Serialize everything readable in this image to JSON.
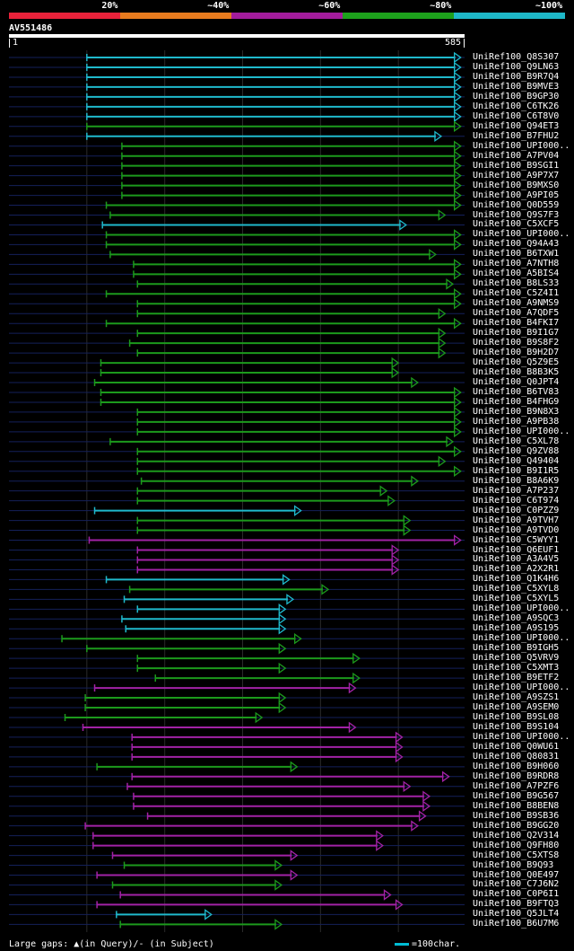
{
  "legend": {
    "ranges": [
      {
        "label": "20%",
        "color": "#e8223a"
      },
      {
        "label": "~40%",
        "color": "#e87b1e"
      },
      {
        "label": "~60%",
        "color": "#a31c9c"
      },
      {
        "label": "~80%",
        "color": "#1da11c"
      },
      {
        "label": "~100%",
        "color": "#1eb8c8"
      }
    ]
  },
  "query": {
    "name": "AV551486",
    "start": "1",
    "end": "585",
    "length": 585
  },
  "colors": {
    "cyan": "#1fb9cc",
    "green": "#1c9a1c",
    "magenta": "#a222a6",
    "faint": "#14205a",
    "divider": "#2a2a2a"
  },
  "hits": [
    {
      "label": "UniRef100_Q8S307",
      "start": 100,
      "end": 580,
      "color": "cyan"
    },
    {
      "label": "UniRef100_Q9LN63",
      "start": 100,
      "end": 580,
      "color": "cyan"
    },
    {
      "label": "UniRef100_B9R7Q4",
      "start": 100,
      "end": 580,
      "color": "cyan"
    },
    {
      "label": "UniRef100_B9MVE3",
      "start": 100,
      "end": 580,
      "color": "cyan"
    },
    {
      "label": "UniRef100_B9GP30",
      "start": 100,
      "end": 580,
      "color": "cyan"
    },
    {
      "label": "UniRef100_C6TK26",
      "start": 100,
      "end": 580,
      "color": "cyan"
    },
    {
      "label": "UniRef100_C6T8V0",
      "start": 100,
      "end": 580,
      "color": "cyan"
    },
    {
      "label": "UniRef100_Q94ET3",
      "start": 100,
      "end": 580,
      "color": "green"
    },
    {
      "label": "UniRef100_B7FHU2",
      "start": 100,
      "end": 555,
      "color": "cyan"
    },
    {
      "label": "UniRef100_UPI000..",
      "start": 145,
      "end": 580,
      "color": "green"
    },
    {
      "label": "UniRef100_A7PV04",
      "start": 145,
      "end": 580,
      "color": "green"
    },
    {
      "label": "UniRef100_B9SGI1",
      "start": 145,
      "end": 580,
      "color": "green"
    },
    {
      "label": "UniRef100_A9P7X7",
      "start": 145,
      "end": 580,
      "color": "green"
    },
    {
      "label": "UniRef100_B9MXS0",
      "start": 145,
      "end": 580,
      "color": "green"
    },
    {
      "label": "UniRef100_A9PI05",
      "start": 145,
      "end": 580,
      "color": "green"
    },
    {
      "label": "UniRef100_Q0D559",
      "start": 125,
      "end": 580,
      "color": "green"
    },
    {
      "label": "UniRef100_Q9S7F3",
      "start": 130,
      "end": 560,
      "color": "green"
    },
    {
      "label": "UniRef100_C5XCF5",
      "start": 120,
      "end": 510,
      "color": "cyan"
    },
    {
      "label": "UniRef100_UPI000..",
      "start": 125,
      "end": 580,
      "color": "green"
    },
    {
      "label": "UniRef100_Q94A43",
      "start": 125,
      "end": 580,
      "color": "green"
    },
    {
      "label": "UniRef100_B6TXW1",
      "start": 130,
      "end": 548,
      "color": "green"
    },
    {
      "label": "UniRef100_A7NTH8",
      "start": 160,
      "end": 580,
      "color": "green"
    },
    {
      "label": "UniRef100_A5BIS4",
      "start": 160,
      "end": 580,
      "color": "green"
    },
    {
      "label": "UniRef100_B8LS33",
      "start": 165,
      "end": 570,
      "color": "green"
    },
    {
      "label": "UniRef100_C5Z4I1",
      "start": 125,
      "end": 580,
      "color": "green"
    },
    {
      "label": "UniRef100_A9NMS9",
      "start": 165,
      "end": 580,
      "color": "green"
    },
    {
      "label": "UniRef100_A7QDF5",
      "start": 165,
      "end": 560,
      "color": "green"
    },
    {
      "label": "UniRef100_B4FKI7",
      "start": 125,
      "end": 580,
      "color": "green"
    },
    {
      "label": "UniRef100_B9I1G7",
      "start": 165,
      "end": 560,
      "color": "green"
    },
    {
      "label": "UniRef100_B9S8F2",
      "start": 155,
      "end": 560,
      "color": "green"
    },
    {
      "label": "UniRef100_B9H2D7",
      "start": 165,
      "end": 560,
      "color": "green"
    },
    {
      "label": "UniRef100_Q5Z9E5",
      "start": 118,
      "end": 500,
      "color": "green"
    },
    {
      "label": "UniRef100_B8B3K5",
      "start": 118,
      "end": 500,
      "color": "green"
    },
    {
      "label": "UniRef100_Q0JPT4",
      "start": 110,
      "end": 525,
      "color": "green"
    },
    {
      "label": "UniRef100_B6TV83",
      "start": 118,
      "end": 580,
      "color": "green"
    },
    {
      "label": "UniRef100_B4FHG9",
      "start": 118,
      "end": 580,
      "color": "green"
    },
    {
      "label": "UniRef100_B9N8X3",
      "start": 165,
      "end": 580,
      "color": "green"
    },
    {
      "label": "UniRef100_A9PB38",
      "start": 165,
      "end": 580,
      "color": "green"
    },
    {
      "label": "UniRef100_UPI000..",
      "start": 165,
      "end": 580,
      "color": "green"
    },
    {
      "label": "UniRef100_C5XL78",
      "start": 130,
      "end": 570,
      "color": "green"
    },
    {
      "label": "UniRef100_Q9ZV88",
      "start": 165,
      "end": 580,
      "color": "green"
    },
    {
      "label": "UniRef100_Q49404",
      "start": 165,
      "end": 560,
      "color": "green"
    },
    {
      "label": "UniRef100_B9I1R5",
      "start": 165,
      "end": 580,
      "color": "green"
    },
    {
      "label": "UniRef100_B8A6K9",
      "start": 170,
      "end": 525,
      "color": "green"
    },
    {
      "label": "UniRef100_A7P237",
      "start": 165,
      "end": 485,
      "color": "green"
    },
    {
      "label": "UniRef100_C6T974",
      "start": 165,
      "end": 495,
      "color": "green"
    },
    {
      "label": "UniRef100_C0PZZ9",
      "start": 110,
      "end": 375,
      "color": "cyan"
    },
    {
      "label": "UniRef100_A9TVH7",
      "start": 165,
      "end": 515,
      "color": "green"
    },
    {
      "label": "UniRef100_A9TVD0",
      "start": 165,
      "end": 515,
      "color": "green"
    },
    {
      "label": "UniRef100_C5WYY1",
      "start": 103,
      "end": 580,
      "color": "magenta"
    },
    {
      "label": "UniRef100_Q6EUF1",
      "start": 165,
      "end": 500,
      "color": "magenta"
    },
    {
      "label": "UniRef100_A3A4V5",
      "start": 165,
      "end": 500,
      "color": "magenta"
    },
    {
      "label": "UniRef100_A2X2R1",
      "start": 165,
      "end": 500,
      "color": "magenta"
    },
    {
      "label": "UniRef100_Q1K4H6",
      "start": 125,
      "end": 360,
      "color": "cyan"
    },
    {
      "label": "UniRef100_C5XYL8",
      "start": 155,
      "end": 410,
      "color": "green"
    },
    {
      "label": "UniRef100_C5XYL5",
      "start": 148,
      "end": 365,
      "color": "cyan"
    },
    {
      "label": "UniRef100_UPI000..",
      "start": 165,
      "end": 355,
      "color": "cyan"
    },
    {
      "label": "UniRef100_A9SQC3",
      "start": 145,
      "end": 355,
      "color": "cyan"
    },
    {
      "label": "UniRef100_A9S195",
      "start": 150,
      "end": 355,
      "color": "cyan"
    },
    {
      "label": "UniRef100_UPI000..",
      "start": 68,
      "end": 375,
      "color": "green"
    },
    {
      "label": "UniRef100_B9IGH5",
      "start": 100,
      "end": 355,
      "color": "green"
    },
    {
      "label": "UniRef100_Q5VRV9",
      "start": 165,
      "end": 450,
      "color": "green"
    },
    {
      "label": "UniRef100_C5XMT3",
      "start": 165,
      "end": 355,
      "color": "green"
    },
    {
      "label": "UniRef100_B9ETF2",
      "start": 188,
      "end": 450,
      "color": "green"
    },
    {
      "label": "UniRef100_UPI000..",
      "start": 110,
      "end": 445,
      "color": "magenta"
    },
    {
      "label": "UniRef100_A9SZS1",
      "start": 98,
      "end": 355,
      "color": "green"
    },
    {
      "label": "UniRef100_A9SEM0",
      "start": 98,
      "end": 355,
      "color": "green"
    },
    {
      "label": "UniRef100_B9SL08",
      "start": 72,
      "end": 325,
      "color": "green"
    },
    {
      "label": "UniRef100_B9S104",
      "start": 95,
      "end": 445,
      "color": "magenta"
    },
    {
      "label": "UniRef100_UPI000..",
      "start": 158,
      "end": 505,
      "color": "magenta"
    },
    {
      "label": "UniRef100_Q0WU61",
      "start": 158,
      "end": 505,
      "color": "magenta"
    },
    {
      "label": "UniRef100_Q80831",
      "start": 158,
      "end": 505,
      "color": "magenta"
    },
    {
      "label": "UniRef100_B9H060",
      "start": 113,
      "end": 370,
      "color": "green"
    },
    {
      "label": "UniRef100_B9RDR8",
      "start": 158,
      "end": 565,
      "color": "magenta"
    },
    {
      "label": "UniRef100_A7PZF6",
      "start": 152,
      "end": 515,
      "color": "magenta"
    },
    {
      "label": "UniRef100_B9G567",
      "start": 160,
      "end": 540,
      "color": "magenta"
    },
    {
      "label": "UniRef100_B8BEN8",
      "start": 160,
      "end": 540,
      "color": "magenta"
    },
    {
      "label": "UniRef100_B9SB36",
      "start": 178,
      "end": 535,
      "color": "magenta"
    },
    {
      "label": "UniRef100_B9GG20",
      "start": 98,
      "end": 525,
      "color": "magenta"
    },
    {
      "label": "UniRef100_Q2V314",
      "start": 108,
      "end": 480,
      "color": "magenta"
    },
    {
      "label": "UniRef100_Q9FH80",
      "start": 108,
      "end": 480,
      "color": "magenta"
    },
    {
      "label": "UniRef100_C5XTS8",
      "start": 133,
      "end": 370,
      "color": "magenta"
    },
    {
      "label": "UniRef100_B9Q93",
      "start": 148,
      "end": 350,
      "color": "green"
    },
    {
      "label": "UniRef100_Q0E497",
      "start": 113,
      "end": 370,
      "color": "magenta"
    },
    {
      "label": "UniRef100_C7J6N2",
      "start": 133,
      "end": 350,
      "color": "green"
    },
    {
      "label": "UniRef100_C0P6I1",
      "start": 143,
      "end": 490,
      "color": "magenta"
    },
    {
      "label": "UniRef100_B9FTQ3",
      "start": 113,
      "end": 505,
      "color": "magenta"
    },
    {
      "label": "UniRef100_Q5JLT4",
      "start": 138,
      "end": 260,
      "color": "cyan"
    },
    {
      "label": "UniRef100_B6U7M6",
      "start": 143,
      "end": 350,
      "color": "green"
    }
  ],
  "footer": {
    "gaps_text": "Large gaps: ▲(in Query)/- (in Subject)",
    "scale_text": "=100char."
  }
}
